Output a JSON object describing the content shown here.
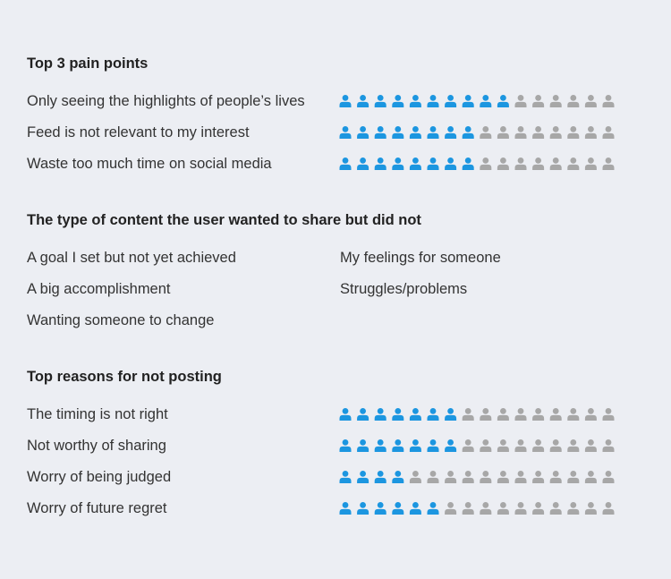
{
  "colors": {
    "active": "#1c96e0",
    "inactive": "#a7a7a7",
    "background": "#eceef3"
  },
  "icon": "person-icon",
  "pain_points": {
    "title": "Top 3 pain points"
  },
  "content_types": {
    "title": "The type of content the user wanted to share but did not",
    "items": [
      "A goal I set but not yet achieved",
      "My feelings for someone",
      "A big accomplishment",
      "Struggles/problems",
      "Wanting someone to change"
    ]
  },
  "reasons": {
    "title": "Top reasons for not posting"
  },
  "chart_data": [
    {
      "type": "bar",
      "title": "Top 3 pain points",
      "total": 16,
      "categories": [
        "Only seeing the highlights of people’s lives",
        "Feed is not relevant to my interest",
        "Waste too much time on social media"
      ],
      "values": [
        10,
        8,
        8
      ]
    },
    {
      "type": "bar",
      "title": "Top reasons for not posting",
      "total": 16,
      "categories": [
        "The timing is not right",
        "Not worthy of sharing",
        "Worry of being judged",
        "Worry of future regret"
      ],
      "values": [
        7,
        7,
        4,
        6
      ]
    }
  ]
}
